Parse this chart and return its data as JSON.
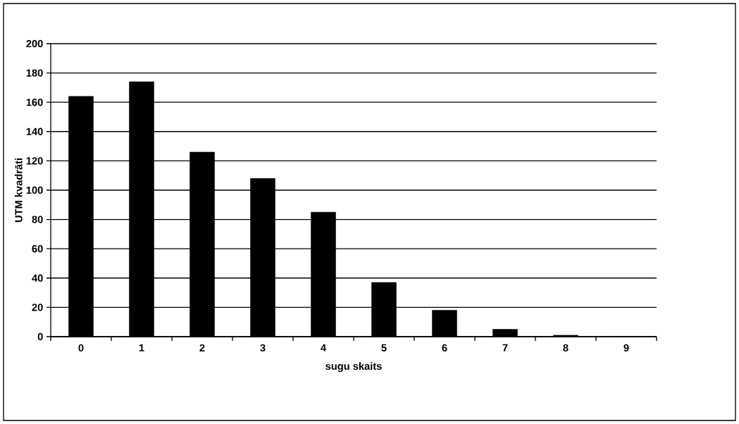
{
  "chart_data": {
    "type": "bar",
    "xlabel": "sugu skaits",
    "ylabel": "UTM kvadrāti",
    "categories": [
      "0",
      "1",
      "2",
      "3",
      "4",
      "5",
      "6",
      "7",
      "8",
      "9"
    ],
    "values": [
      164,
      174,
      126,
      108,
      85,
      37,
      18,
      5,
      1,
      0
    ],
    "color": "#000000",
    "ylim": [
      0,
      200
    ],
    "yticks": [
      0,
      20,
      40,
      60,
      80,
      100,
      120,
      140,
      160,
      180,
      200
    ],
    "grid": "y"
  }
}
